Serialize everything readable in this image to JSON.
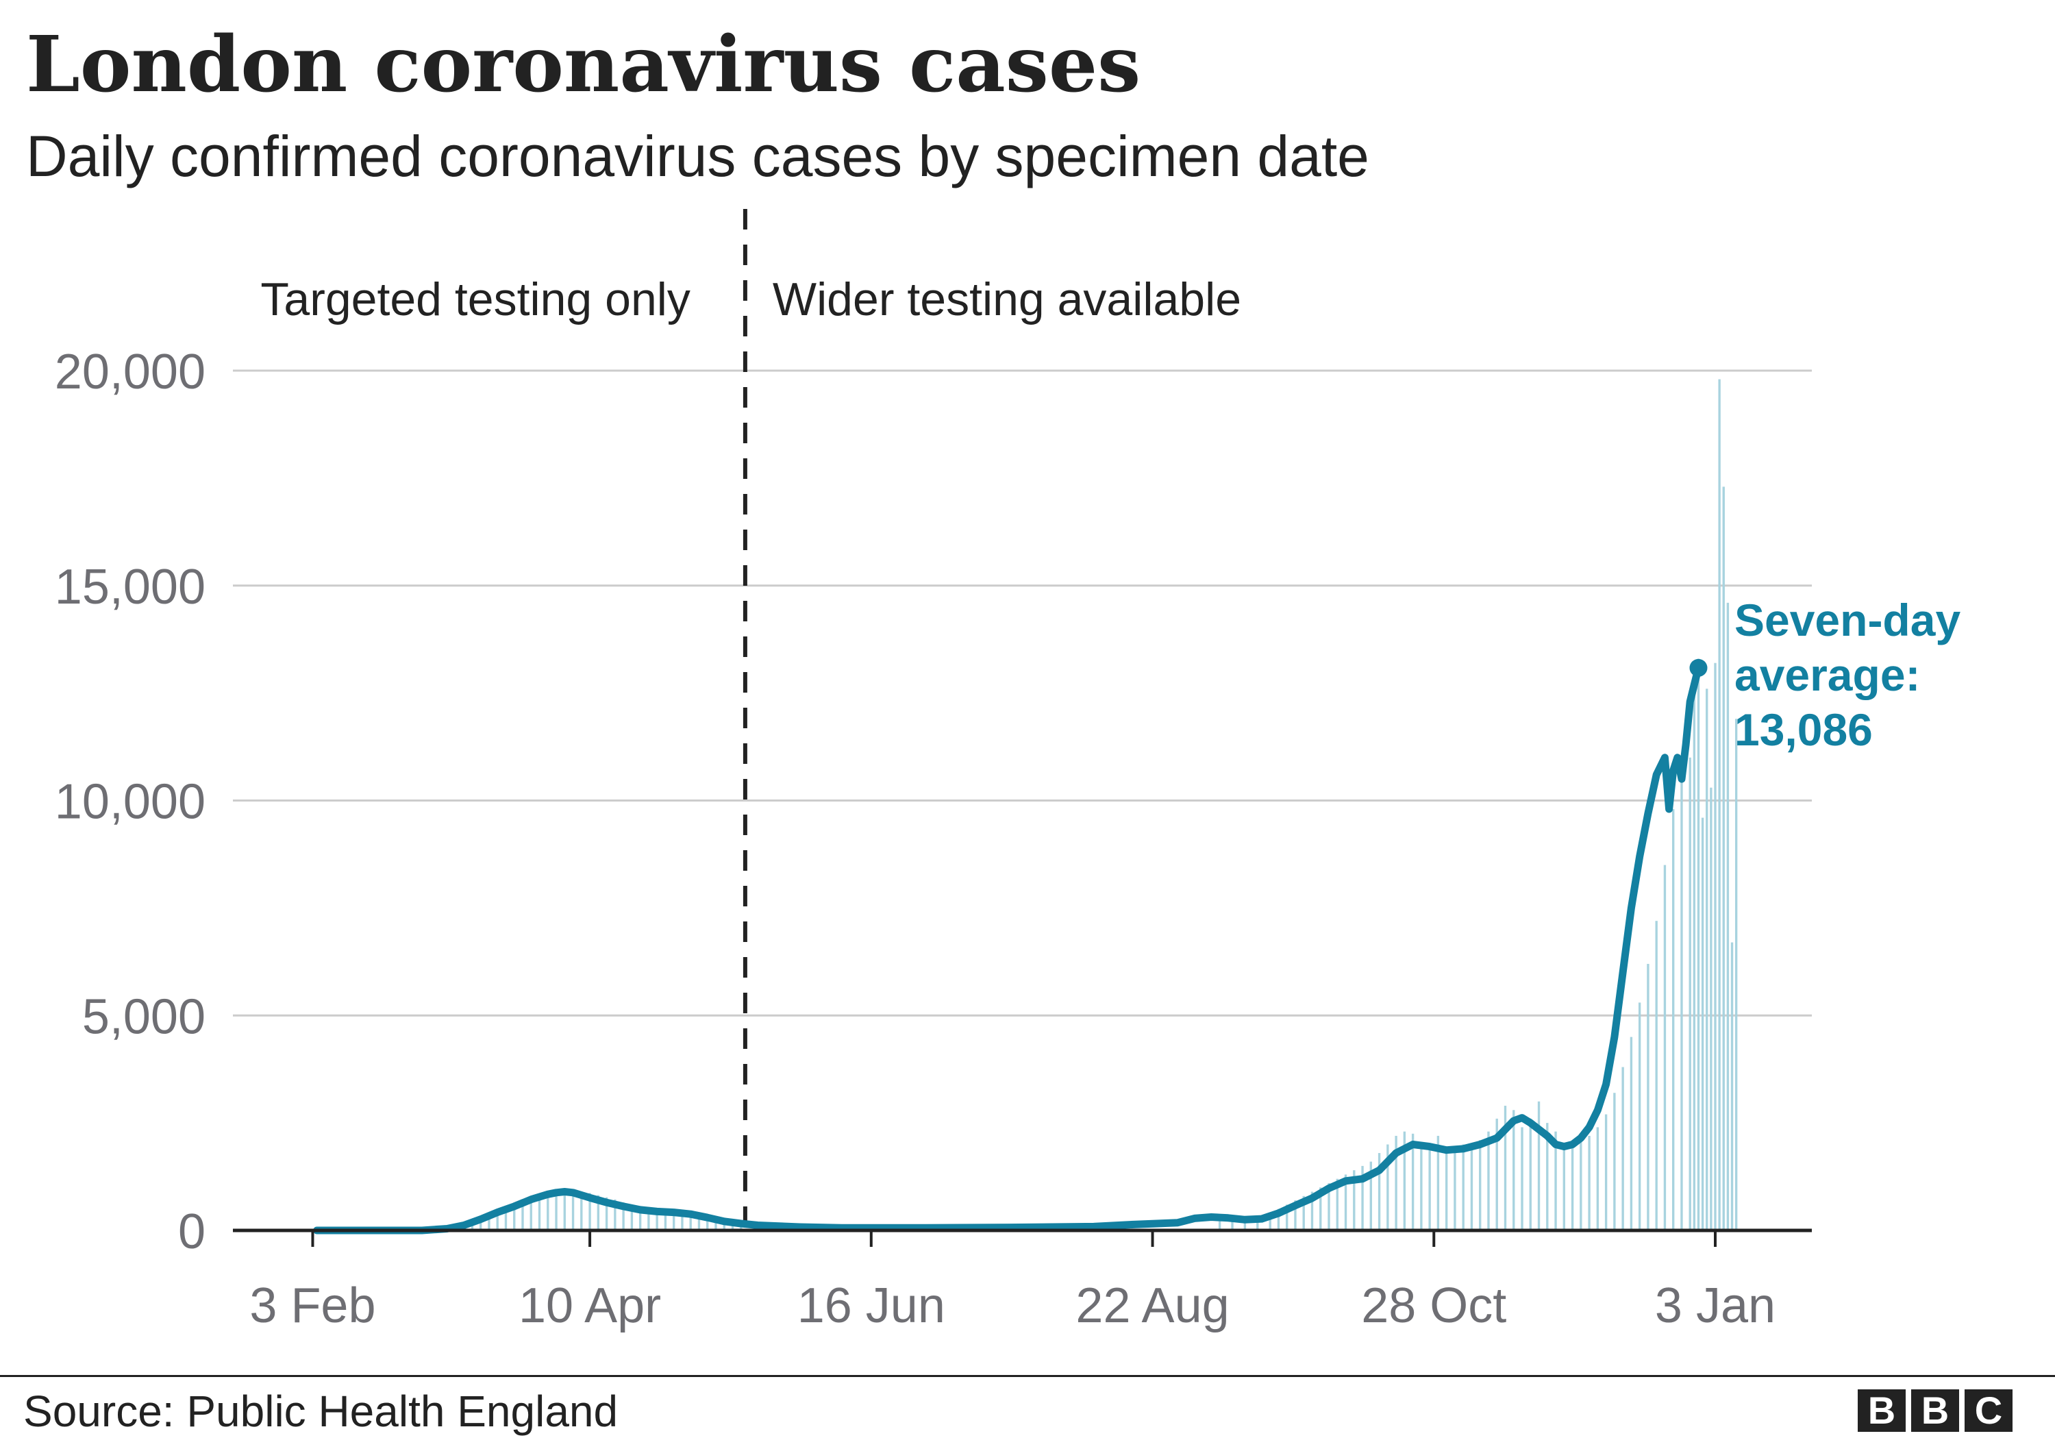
{
  "title": "London coronavirus cases",
  "subtitle": "Daily confirmed coronavirus cases by specimen date",
  "source": "Source: Public Health England",
  "logo": [
    "B",
    "B",
    "C"
  ],
  "colors": {
    "line": "#1380a1",
    "bars": "#a8d3df",
    "grid": "#cccccc",
    "text": "#222222",
    "axis_text": "#6e6e73"
  },
  "chart_data": {
    "type": "bar",
    "title": "London coronavirus cases",
    "subtitle": "Daily confirmed coronavirus cases by specimen date",
    "xlabel": "",
    "ylabel": "",
    "ylim": [
      0,
      22000
    ],
    "yticks": [
      0,
      5000,
      10000,
      15000,
      20000
    ],
    "ytick_labels": [
      "0",
      "5,000",
      "10,000",
      "15,000",
      "20,000"
    ],
    "xticks": [
      {
        "day": 34,
        "label": "3 Feb"
      },
      {
        "day": 100,
        "label": "10 Apr"
      },
      {
        "day": 167,
        "label": "16 Jun"
      },
      {
        "day": 234,
        "label": "22 Aug"
      },
      {
        "day": 301,
        "label": "28 Oct"
      },
      {
        "day": 368,
        "label": "3 Jan"
      }
    ],
    "divider": {
      "day": 137,
      "left_label": "Targeted testing only",
      "right_label": "Wider testing available"
    },
    "series": [
      {
        "name": "Daily confirmed cases",
        "type": "bar",
        "note": "x values are dates on a daily axis (day of 2020 + spillover into Jan)",
        "points": [
          [
            68,
            60
          ],
          [
            70,
            110
          ],
          [
            72,
            200
          ],
          [
            74,
            300
          ],
          [
            76,
            390
          ],
          [
            78,
            480
          ],
          [
            80,
            560
          ],
          [
            82,
            640
          ],
          [
            84,
            700
          ],
          [
            86,
            760
          ],
          [
            88,
            820
          ],
          [
            90,
            880
          ],
          [
            92,
            930
          ],
          [
            94,
            960
          ],
          [
            96,
            940
          ],
          [
            98,
            900
          ],
          [
            100,
            870
          ],
          [
            102,
            820
          ],
          [
            104,
            770
          ],
          [
            106,
            720
          ],
          [
            108,
            650
          ],
          [
            110,
            600
          ],
          [
            112,
            560
          ],
          [
            114,
            520
          ],
          [
            116,
            490
          ],
          [
            118,
            460
          ],
          [
            120,
            430
          ],
          [
            122,
            400
          ],
          [
            124,
            370
          ],
          [
            126,
            330
          ],
          [
            128,
            290
          ],
          [
            130,
            250
          ],
          [
            132,
            220
          ],
          [
            134,
            190
          ],
          [
            136,
            160
          ],
          [
            250,
            280
          ],
          [
            253,
            320
          ],
          [
            256,
            260
          ],
          [
            259,
            300
          ],
          [
            262,
            420
          ],
          [
            264,
            500
          ],
          [
            266,
            600
          ],
          [
            268,
            700
          ],
          [
            270,
            800
          ],
          [
            272,
            900
          ],
          [
            274,
            1000
          ],
          [
            276,
            1100
          ],
          [
            278,
            1200
          ],
          [
            280,
            1300
          ],
          [
            282,
            1400
          ],
          [
            284,
            1500
          ],
          [
            286,
            1600
          ],
          [
            288,
            1800
          ],
          [
            290,
            2000
          ],
          [
            292,
            2200
          ],
          [
            294,
            2300
          ],
          [
            296,
            2250
          ],
          [
            298,
            2000
          ],
          [
            300,
            1950
          ],
          [
            302,
            2200
          ],
          [
            304,
            1900
          ],
          [
            306,
            1850
          ],
          [
            308,
            2000
          ],
          [
            310,
            1950
          ],
          [
            312,
            2100
          ],
          [
            314,
            2300
          ],
          [
            316,
            2600
          ],
          [
            318,
            2900
          ],
          [
            320,
            2800
          ],
          [
            322,
            2400
          ],
          [
            324,
            2600
          ],
          [
            326,
            3000
          ],
          [
            328,
            2500
          ],
          [
            330,
            2300
          ],
          [
            332,
            2000
          ],
          [
            334,
            2050
          ],
          [
            336,
            2100
          ],
          [
            338,
            2200
          ],
          [
            340,
            2400
          ],
          [
            342,
            2700
          ],
          [
            344,
            3200
          ],
          [
            346,
            3800
          ],
          [
            348,
            4500
          ],
          [
            350,
            5300
          ],
          [
            352,
            6200
          ],
          [
            354,
            7200
          ],
          [
            356,
            8500
          ],
          [
            358,
            9800
          ],
          [
            360,
            10700
          ],
          [
            362,
            11000
          ],
          [
            363,
            13100
          ],
          [
            364,
            13300
          ],
          [
            365,
            9600
          ],
          [
            366,
            12600
          ],
          [
            367,
            10300
          ],
          [
            368,
            13200
          ],
          [
            369,
            19800
          ],
          [
            370,
            17300
          ],
          [
            371,
            14600
          ],
          [
            372,
            6700
          ],
          [
            373,
            11900
          ]
        ]
      },
      {
        "name": "Seven-day average",
        "type": "line",
        "points": [
          [
            35,
            0
          ],
          [
            60,
            0
          ],
          [
            66,
            40
          ],
          [
            70,
            120
          ],
          [
            74,
            260
          ],
          [
            78,
            420
          ],
          [
            82,
            560
          ],
          [
            86,
            720
          ],
          [
            90,
            840
          ],
          [
            92,
            880
          ],
          [
            94,
            900
          ],
          [
            96,
            880
          ],
          [
            98,
            820
          ],
          [
            100,
            760
          ],
          [
            104,
            650
          ],
          [
            108,
            560
          ],
          [
            112,
            480
          ],
          [
            116,
            440
          ],
          [
            120,
            420
          ],
          [
            124,
            380
          ],
          [
            128,
            300
          ],
          [
            132,
            210
          ],
          [
            136,
            160
          ],
          [
            140,
            120
          ],
          [
            150,
            80
          ],
          [
            160,
            60
          ],
          [
            180,
            60
          ],
          [
            200,
            70
          ],
          [
            220,
            90
          ],
          [
            230,
            140
          ],
          [
            240,
            180
          ],
          [
            244,
            280
          ],
          [
            248,
            310
          ],
          [
            252,
            290
          ],
          [
            256,
            250
          ],
          [
            260,
            270
          ],
          [
            264,
            400
          ],
          [
            268,
            580
          ],
          [
            272,
            750
          ],
          [
            276,
            980
          ],
          [
            280,
            1150
          ],
          [
            284,
            1200
          ],
          [
            288,
            1400
          ],
          [
            292,
            1800
          ],
          [
            296,
            2000
          ],
          [
            300,
            1950
          ],
          [
            304,
            1870
          ],
          [
            308,
            1900
          ],
          [
            312,
            2000
          ],
          [
            316,
            2150
          ],
          [
            318,
            2350
          ],
          [
            320,
            2550
          ],
          [
            322,
            2620
          ],
          [
            324,
            2500
          ],
          [
            326,
            2350
          ],
          [
            328,
            2200
          ],
          [
            330,
            2000
          ],
          [
            332,
            1950
          ],
          [
            334,
            2000
          ],
          [
            336,
            2150
          ],
          [
            338,
            2400
          ],
          [
            340,
            2800
          ],
          [
            342,
            3400
          ],
          [
            344,
            4500
          ],
          [
            346,
            6000
          ],
          [
            348,
            7500
          ],
          [
            350,
            8700
          ],
          [
            352,
            9700
          ],
          [
            354,
            10600
          ],
          [
            356,
            11000
          ],
          [
            357,
            9800
          ],
          [
            358,
            10700
          ],
          [
            359,
            11000
          ],
          [
            360,
            10500
          ],
          [
            361,
            11300
          ],
          [
            362,
            12300
          ],
          [
            363,
            12700
          ],
          [
            364,
            13086
          ]
        ]
      }
    ],
    "annotation": {
      "lines": [
        "Seven-day",
        "average:",
        "13,086"
      ],
      "value": 13086,
      "day": 364
    }
  }
}
